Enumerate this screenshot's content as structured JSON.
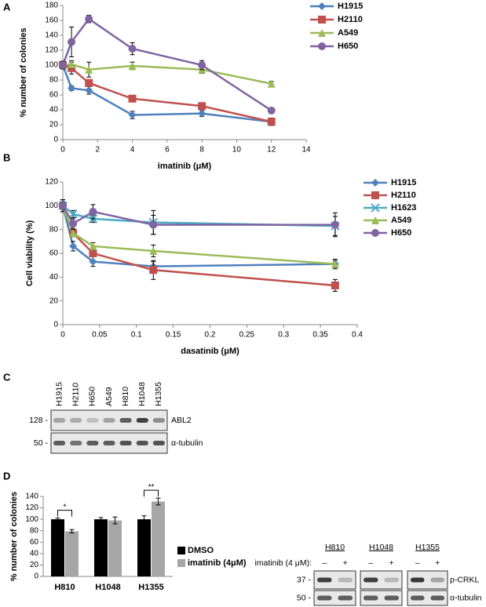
{
  "panel_labels": [
    "A",
    "B",
    "C",
    "D"
  ],
  "chart_data": [
    {
      "type": "line",
      "x_label": "imatinib (μM)",
      "y_label": "% number of colonies",
      "x": [
        0,
        0.5,
        1.5,
        4,
        8,
        12
      ],
      "xlim": [
        0,
        14
      ],
      "xticks": [
        0,
        2,
        4,
        6,
        8,
        10,
        12,
        14
      ],
      "ylim": [
        0,
        180
      ],
      "yticks": [
        0,
        20,
        40,
        60,
        80,
        100,
        120,
        140,
        160,
        180
      ],
      "grid": false,
      "legend": "right",
      "series": [
        {
          "name": "H1915",
          "color": "#4f81bd",
          "marker": "diamond",
          "values": [
            100,
            69,
            66,
            33,
            35,
            24
          ],
          "errors": [
            5,
            3,
            5,
            5,
            4,
            3
          ]
        },
        {
          "name": "H2110",
          "color": "#c0504d",
          "marker": "square",
          "values": [
            100,
            96,
            76,
            55,
            45,
            24
          ],
          "errors": [
            5,
            8,
            4,
            4,
            3,
            5
          ]
        },
        {
          "name": "A549",
          "color": "#9bbb59",
          "marker": "triangle",
          "values": [
            100,
            101,
            94,
            99,
            94,
            75
          ],
          "errors": [
            5,
            5,
            10,
            5,
            5,
            3
          ]
        },
        {
          "name": "H650",
          "color": "#8064a2",
          "marker": "circle",
          "values": [
            100,
            131,
            162,
            122,
            100,
            39
          ],
          "errors": [
            5,
            20,
            5,
            8,
            6,
            3
          ]
        }
      ]
    },
    {
      "type": "line",
      "x_label": "dasatinib (μM)",
      "y_label": "Cell viability (%)",
      "x": [
        0,
        0.014,
        0.041,
        0.123,
        0.37
      ],
      "xlim": [
        0,
        0.4
      ],
      "xticks": [
        0,
        0.05,
        0.1,
        0.15,
        0.2,
        0.25,
        0.3,
        0.35,
        0.4
      ],
      "ylim": [
        0,
        120
      ],
      "yticks": [
        0,
        20,
        40,
        60,
        80,
        100,
        120
      ],
      "grid": false,
      "legend": "right",
      "series": [
        {
          "name": "H1915",
          "color": "#4f81bd",
          "marker": "diamond",
          "values": [
            100,
            66,
            53,
            49,
            51
          ],
          "errors": [
            5,
            4,
            4,
            4,
            3
          ]
        },
        {
          "name": "H2110",
          "color": "#c0504d",
          "marker": "square",
          "values": [
            100,
            77,
            60,
            46,
            33
          ],
          "errors": [
            5,
            3,
            3,
            8,
            5
          ]
        },
        {
          "name": "H1623",
          "color": "#4bacc6",
          "marker": "cross",
          "values": [
            100,
            93,
            89,
            86,
            83
          ],
          "errors": [
            5,
            3,
            3,
            10,
            8
          ]
        },
        {
          "name": "A549",
          "color": "#9bbb59",
          "marker": "triangle",
          "values": [
            100,
            77,
            66,
            62,
            51
          ],
          "errors": [
            3,
            3,
            3,
            5,
            4
          ]
        },
        {
          "name": "H650",
          "color": "#8064a2",
          "marker": "circle",
          "values": [
            100,
            85,
            95,
            84,
            84
          ],
          "errors": [
            3,
            4,
            6,
            8,
            10
          ]
        }
      ]
    },
    {
      "type": "bar",
      "y_label": "% number of colonies",
      "categories": [
        "H810",
        "H1048",
        "H1355"
      ],
      "ylim": [
        0,
        140
      ],
      "yticks": [
        0,
        20,
        40,
        60,
        80,
        100,
        120,
        140
      ],
      "grid": false,
      "legend": "right",
      "annotations": [
        "*",
        "**"
      ],
      "series": [
        {
          "name": "DMSO",
          "color": "#000000",
          "values": [
            100,
            100,
            100
          ],
          "errors": [
            2,
            3,
            6
          ]
        },
        {
          "name": "imatinib (4μM)",
          "color": "#a6a6a6",
          "values": [
            79,
            98,
            131
          ],
          "errors": [
            3,
            6,
            6
          ]
        }
      ]
    }
  ],
  "blot_c": {
    "lanes": [
      "H1915",
      "H2110",
      "H650",
      "A549",
      "H810",
      "H1048",
      "H1355"
    ],
    "markers": [
      "128 -",
      "50 -"
    ],
    "proteins": [
      "ABL2",
      "α-tubulin"
    ]
  },
  "blot_d": {
    "cell_lines": [
      "H810",
      "H1048",
      "H1355"
    ],
    "treatment": "imatinib (4 μM):",
    "signs": [
      "–",
      "+"
    ],
    "markers": [
      "37 -",
      "50 -"
    ],
    "proteins": [
      "p-CRKL",
      "α-tubulin"
    ]
  }
}
